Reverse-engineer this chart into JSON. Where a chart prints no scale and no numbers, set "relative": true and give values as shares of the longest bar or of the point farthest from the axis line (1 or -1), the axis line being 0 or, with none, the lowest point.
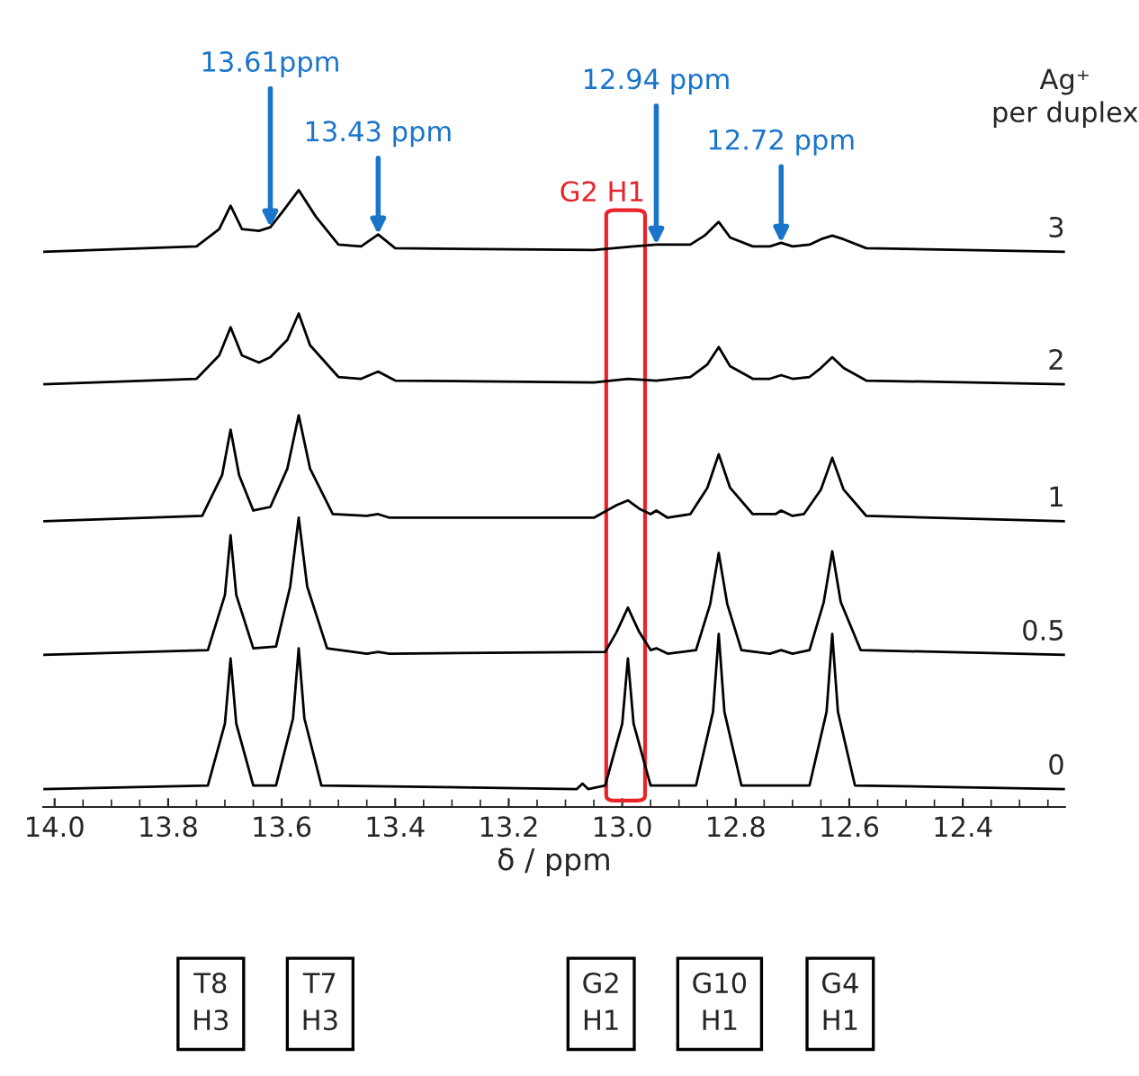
{
  "chart_data": {
    "type": "line",
    "relative": true,
    "xlabel": "δ / ppm",
    "xlim": [
      14.02,
      12.22
    ],
    "xticks": [
      {
        "value": 14.0,
        "label": "14.0"
      },
      {
        "value": 13.8,
        "label": "13.8"
      },
      {
        "value": 13.6,
        "label": "13.6"
      },
      {
        "value": 13.4,
        "label": "13.4"
      },
      {
        "value": 13.2,
        "label": "13.2"
      },
      {
        "value": 13.0,
        "label": "13.0"
      },
      {
        "value": 12.8,
        "label": "12.8"
      },
      {
        "value": 12.6,
        "label": "12.6"
      },
      {
        "value": 12.4,
        "label": "12.4"
      }
    ],
    "tick_labels": "x",
    "series": [
      {
        "name": "0",
        "color": "#000000",
        "x": [
          14.02,
          13.73,
          13.7,
          13.69,
          13.68,
          13.65,
          13.61,
          13.58,
          13.57,
          13.56,
          13.53,
          13.08,
          13.07,
          13.06,
          13.03,
          13.0,
          12.99,
          12.98,
          12.95,
          12.87,
          12.84,
          12.83,
          12.82,
          12.79,
          12.67,
          12.64,
          12.63,
          12.62,
          12.59,
          12.22
        ],
        "values": [
          0,
          0.006,
          0.109,
          0.218,
          0.109,
          0.006,
          0.006,
          0.118,
          0.235,
          0.118,
          0.006,
          0,
          0.009,
          0,
          0.006,
          0.109,
          0.218,
          0.109,
          0.006,
          0.006,
          0.129,
          0.259,
          0.129,
          0.006,
          0.006,
          0.129,
          0.259,
          0.129,
          0.006,
          0
        ]
      },
      {
        "name": "0.5",
        "color": "#000000",
        "x": [
          14.02,
          13.73,
          13.7,
          13.69,
          13.68,
          13.65,
          13.61,
          13.585,
          13.57,
          13.555,
          13.52,
          13.45,
          13.43,
          13.41,
          13.03,
          13.01,
          12.99,
          12.97,
          12.95,
          12.94,
          12.92,
          12.87,
          12.845,
          12.83,
          12.815,
          12.79,
          12.74,
          12.72,
          12.7,
          12.67,
          12.645,
          12.63,
          12.615,
          12.58,
          12.22
        ],
        "values": [
          0.224,
          0.232,
          0.324,
          0.424,
          0.324,
          0.235,
          0.238,
          0.338,
          0.453,
          0.338,
          0.235,
          0.226,
          0.229,
          0.226,
          0.229,
          0.262,
          0.303,
          0.262,
          0.232,
          0.235,
          0.226,
          0.232,
          0.309,
          0.394,
          0.309,
          0.232,
          0.226,
          0.232,
          0.226,
          0.232,
          0.312,
          0.397,
          0.312,
          0.232,
          0.224
        ]
      },
      {
        "name": "1",
        "color": "#000000",
        "x": [
          14.02,
          13.74,
          13.705,
          13.69,
          13.675,
          13.65,
          13.62,
          13.59,
          13.57,
          13.55,
          13.51,
          13.45,
          13.43,
          13.41,
          13.05,
          13.01,
          12.99,
          12.97,
          12.95,
          12.94,
          12.92,
          12.88,
          12.85,
          12.83,
          12.81,
          12.77,
          12.73,
          12.72,
          12.7,
          12.68,
          12.65,
          12.63,
          12.61,
          12.57,
          12.22
        ],
        "values": [
          0.447,
          0.456,
          0.524,
          0.6,
          0.524,
          0.465,
          0.471,
          0.535,
          0.624,
          0.535,
          0.459,
          0.456,
          0.459,
          0.453,
          0.453,
          0.474,
          0.482,
          0.468,
          0.459,
          0.465,
          0.453,
          0.459,
          0.503,
          0.559,
          0.503,
          0.459,
          0.459,
          0.465,
          0.456,
          0.459,
          0.5,
          0.553,
          0.5,
          0.456,
          0.447
        ]
      },
      {
        "name": "2",
        "color": "#000000",
        "x": [
          14.02,
          13.75,
          13.71,
          13.69,
          13.67,
          13.64,
          13.62,
          13.59,
          13.57,
          13.55,
          13.5,
          13.46,
          13.43,
          13.4,
          13.05,
          12.99,
          12.94,
          12.88,
          12.85,
          12.83,
          12.81,
          12.77,
          12.74,
          12.72,
          12.7,
          12.67,
          12.65,
          12.63,
          12.61,
          12.57,
          12.22
        ],
        "values": [
          0.676,
          0.685,
          0.724,
          0.771,
          0.724,
          0.712,
          0.721,
          0.75,
          0.794,
          0.741,
          0.688,
          0.685,
          0.697,
          0.682,
          0.679,
          0.685,
          0.682,
          0.688,
          0.709,
          0.738,
          0.706,
          0.685,
          0.685,
          0.691,
          0.685,
          0.688,
          0.703,
          0.721,
          0.703,
          0.682,
          0.676
        ]
      },
      {
        "name": "3",
        "color": "#000000",
        "x": [
          14.02,
          13.75,
          13.71,
          13.69,
          13.67,
          13.64,
          13.62,
          13.6,
          13.57,
          13.54,
          13.5,
          13.46,
          13.43,
          13.4,
          13.05,
          12.98,
          12.94,
          12.88,
          12.855,
          12.83,
          12.81,
          12.77,
          12.74,
          12.72,
          12.7,
          12.67,
          12.65,
          12.63,
          12.61,
          12.57,
          12.22
        ],
        "values": [
          0.897,
          0.906,
          0.935,
          0.974,
          0.935,
          0.932,
          0.938,
          0.962,
          1.0,
          0.956,
          0.909,
          0.906,
          0.926,
          0.903,
          0.9,
          0.906,
          0.909,
          0.909,
          0.924,
          0.947,
          0.921,
          0.906,
          0.906,
          0.912,
          0.906,
          0.909,
          0.918,
          0.924,
          0.918,
          0.903,
          0.897
        ]
      }
    ],
    "annotations": [
      {
        "text": "13.61ppm",
        "x": 13.62,
        "y": 0.938
      },
      {
        "text": "13.43 ppm",
        "x": 13.43,
        "y": 0.926
      },
      {
        "text": "12.94 ppm",
        "x": 12.94,
        "y": 0.909
      },
      {
        "text": "12.72 ppm",
        "x": 12.72,
        "y": 0.912
      },
      "Ag⁺\nper duplex",
      "G2 H1",
      "T8\nH3",
      "T7\nH3",
      "G2\nH1",
      "G10\nH1",
      "G4\nH1"
    ]
  }
}
